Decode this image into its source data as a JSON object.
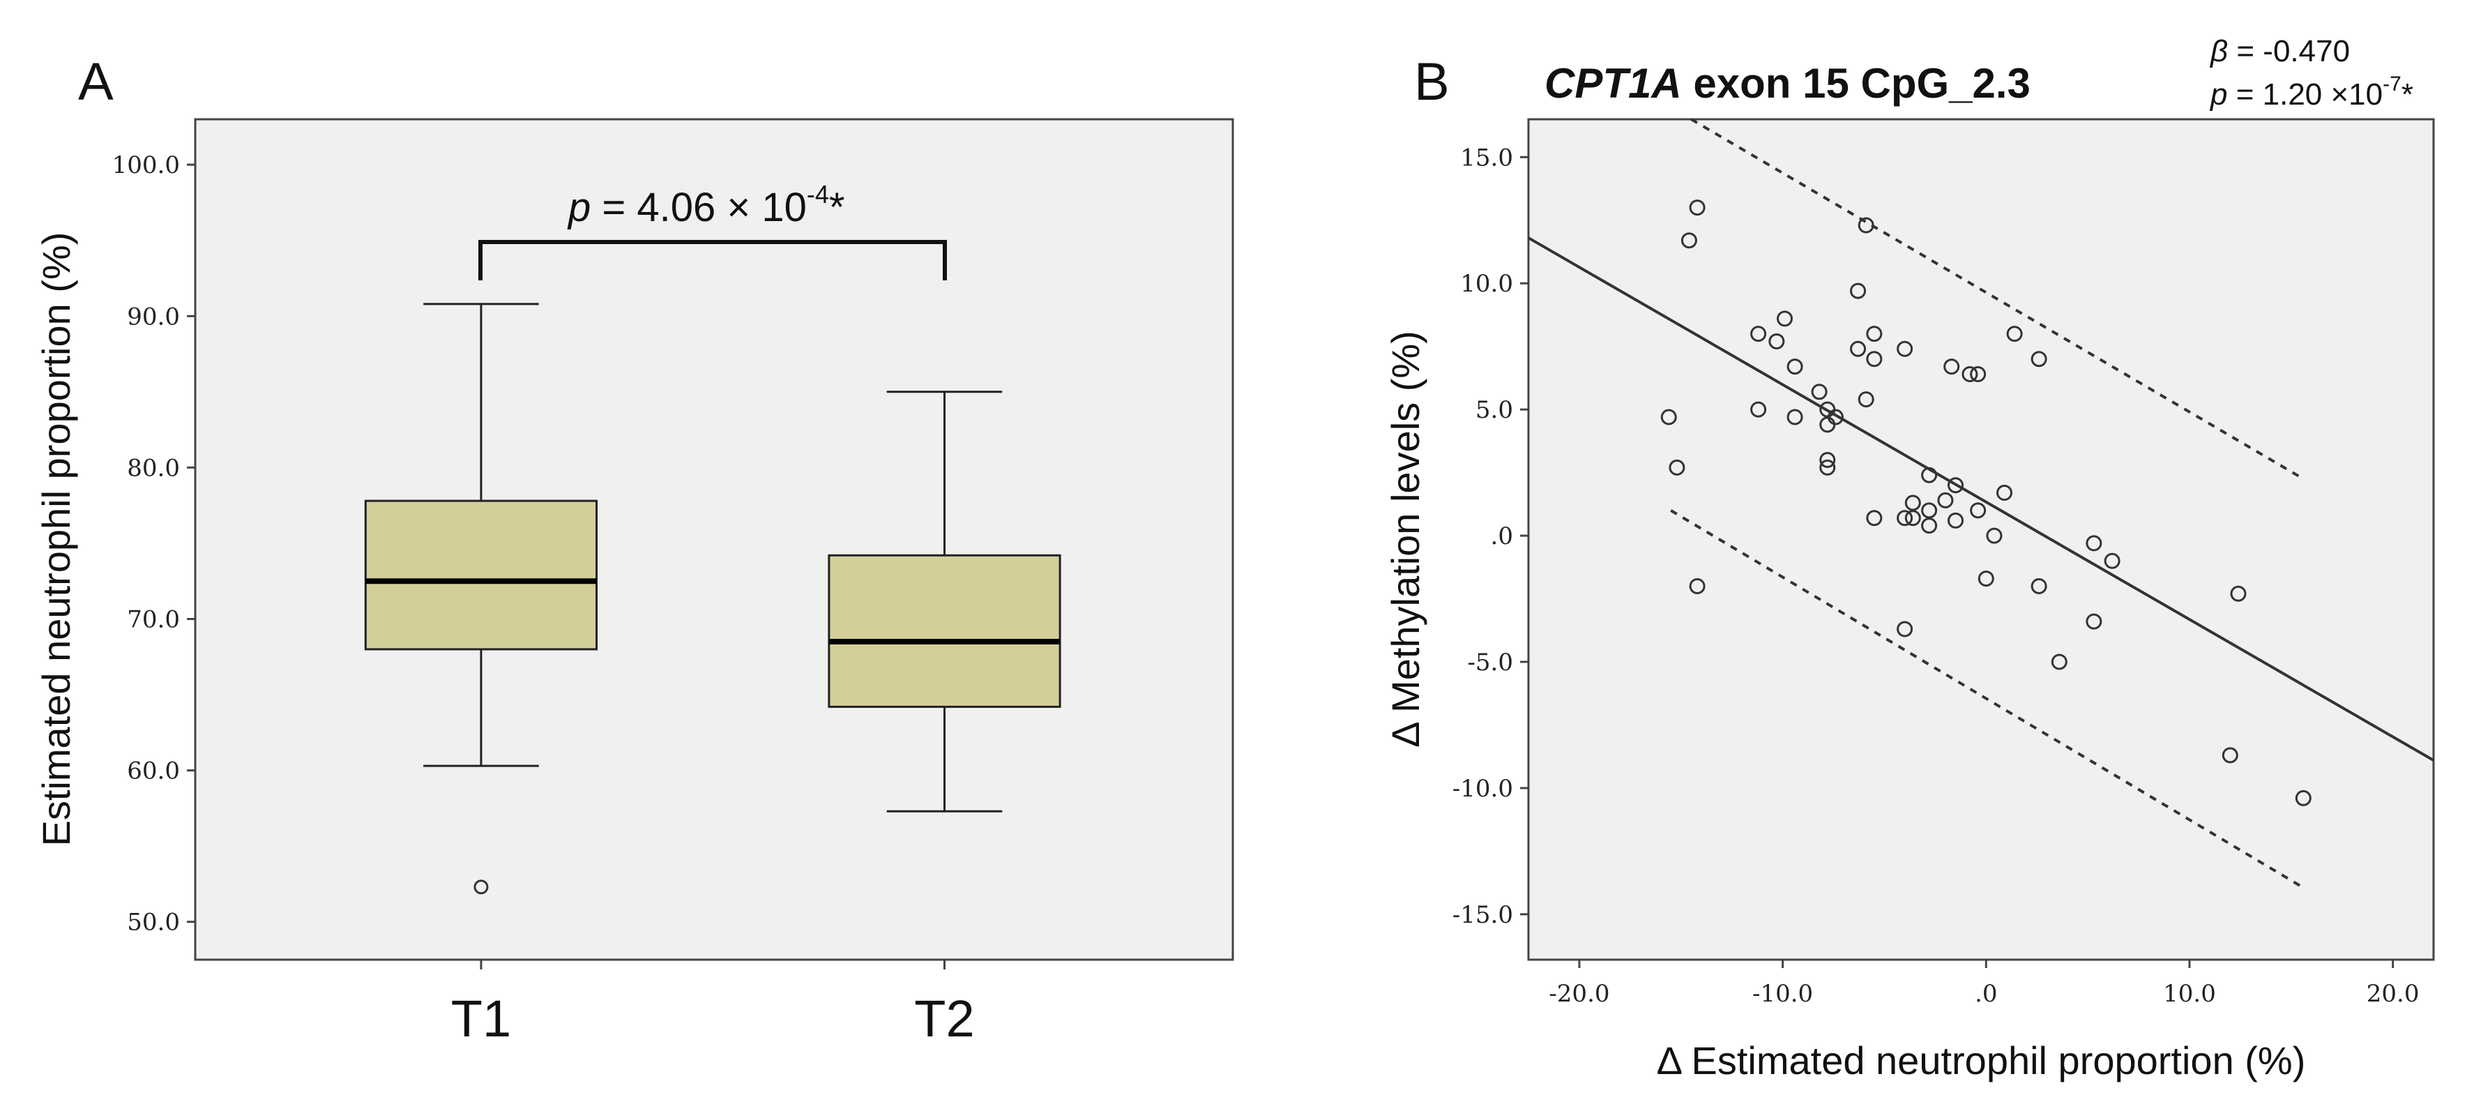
{
  "chart_data": [
    {
      "panel": "A",
      "type": "box",
      "ylabel": "Estimated neutrophil proportion (%)",
      "ylim": [
        47.5,
        103.0
      ],
      "yticks": [
        "100.0",
        "90.0",
        "80.0",
        "70.0",
        "60.0",
        "50.0"
      ],
      "grid": false,
      "categories": [
        "T1",
        "T2"
      ],
      "boxes": [
        {
          "category": "T1",
          "whisker_low": 60.3,
          "q1": 68.0,
          "median": 72.5,
          "q3": 77.8,
          "whisker_high": 90.8,
          "outliers": [
            52.3
          ]
        },
        {
          "category": "T2",
          "whisker_low": 57.3,
          "q1": 64.2,
          "median": 68.5,
          "q3": 74.2,
          "whisker_high": 85.0,
          "outliers": []
        }
      ],
      "colors": {
        "box_fill": "#d4ce9b",
        "plot_bg": "#f0f0f0"
      },
      "annotation": {
        "p_label": "p",
        "equals": " = 4.06 × 10",
        "exponent": "-4",
        "suffix": "*"
      }
    },
    {
      "panel": "B",
      "type": "scatter",
      "title_gene": "CPT1A",
      "title_rest": " exon 15 CpG_2.3",
      "xlabel": "Δ Estimated neutrophil proportion (%)",
      "ylabel": "Δ Methylation levels (%)",
      "xlim": [
        -22.5,
        22.0
      ],
      "ylim": [
        -16.8,
        16.5
      ],
      "xticks": [
        "-20.0",
        "-10.0",
        ".0",
        "10.0",
        "20.0"
      ],
      "yticks": [
        "15.0",
        "10.0",
        "5.0",
        ".0",
        "-5.0",
        "-10.0",
        "-15.0"
      ],
      "grid": false,
      "stats": {
        "beta_label": "β",
        "beta_value": " = -0.470",
        "p_label": "p",
        "p_value": " = 1.20 ×10",
        "p_exponent": "-7",
        "p_suffix": "*"
      },
      "fit_line": {
        "x": [
          -22.5,
          22.0
        ],
        "y": [
          11.8,
          -8.9
        ]
      },
      "ci_upper": {
        "x": [
          -14.5,
          15.5
        ],
        "y": [
          16.5,
          2.3
        ]
      },
      "ci_lower": {
        "x": [
          -15.5,
          15.5
        ],
        "y": [
          1.0,
          -13.9
        ]
      },
      "points": [
        [
          -14.2,
          13.0
        ],
        [
          -14.6,
          11.7
        ],
        [
          -15.6,
          4.7
        ],
        [
          -15.2,
          2.7
        ],
        [
          -14.2,
          -2.0
        ],
        [
          -11.2,
          8.0
        ],
        [
          -11.2,
          5.0
        ],
        [
          -10.3,
          7.7
        ],
        [
          -9.9,
          8.6
        ],
        [
          -9.4,
          6.7
        ],
        [
          -9.4,
          4.7
        ],
        [
          -8.2,
          5.7
        ],
        [
          -7.8,
          5.0
        ],
        [
          -7.8,
          4.4
        ],
        [
          -7.8,
          3.0
        ],
        [
          -7.8,
          2.7
        ],
        [
          -7.4,
          4.7
        ],
        [
          -6.3,
          9.7
        ],
        [
          -6.3,
          7.4
        ],
        [
          -5.9,
          12.3
        ],
        [
          -5.5,
          8.0
        ],
        [
          -5.5,
          7.0
        ],
        [
          -5.9,
          5.4
        ],
        [
          -5.5,
          0.7
        ],
        [
          -4.0,
          7.4
        ],
        [
          -4.0,
          0.7
        ],
        [
          -3.6,
          0.7
        ],
        [
          -3.6,
          1.3
        ],
        [
          -4.0,
          -3.7
        ],
        [
          -2.8,
          2.4
        ],
        [
          -2.8,
          1.0
        ],
        [
          -2.8,
          0.4
        ],
        [
          -2.0,
          1.4
        ],
        [
          -1.7,
          6.7
        ],
        [
          -1.5,
          2.0
        ],
        [
          -1.5,
          0.6
        ],
        [
          -0.8,
          6.4
        ],
        [
          -0.4,
          6.4
        ],
        [
          -0.4,
          1.0
        ],
        [
          0.0,
          -1.7
        ],
        [
          0.4,
          0.0
        ],
        [
          0.9,
          1.7
        ],
        [
          1.4,
          8.0
        ],
        [
          2.6,
          7.0
        ],
        [
          2.6,
          -2.0
        ],
        [
          3.6,
          -5.0
        ],
        [
          5.3,
          -0.3
        ],
        [
          5.3,
          -3.4
        ],
        [
          6.2,
          -1.0
        ],
        [
          12.0,
          -8.7
        ],
        [
          12.4,
          -2.3
        ],
        [
          15.6,
          -10.4
        ]
      ],
      "colors": {
        "plot_bg": "#f0f0f0",
        "marker_stroke": "#333333"
      }
    }
  ]
}
